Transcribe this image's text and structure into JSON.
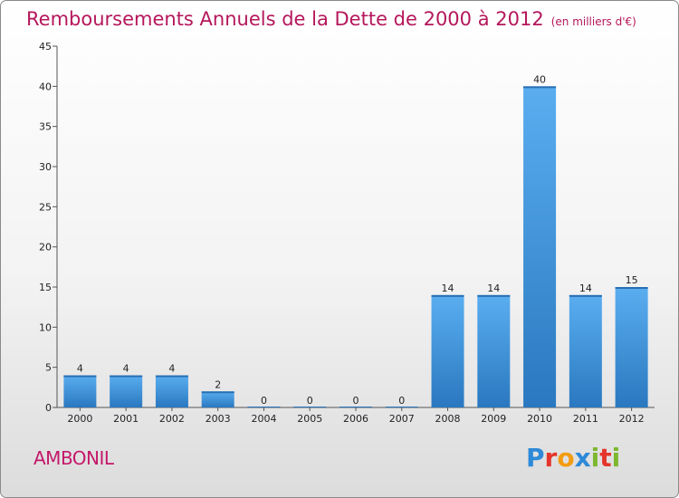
{
  "chart_data": {
    "type": "bar",
    "title": "Remboursements Annuels de la Dette de 2000 à 2012",
    "subtitle": "(en milliers d'€)",
    "xlabel": "",
    "ylabel": "",
    "categories": [
      "2000",
      "2001",
      "2002",
      "2003",
      "2004",
      "2005",
      "2006",
      "2007",
      "2008",
      "2009",
      "2010",
      "2011",
      "2012"
    ],
    "values": [
      4,
      4,
      4,
      2,
      0,
      0,
      0,
      0,
      14,
      14,
      40,
      14,
      15
    ],
    "data_labels": [
      "4",
      "4",
      "4",
      "2",
      "0",
      "0",
      "0",
      "0",
      "14",
      "14",
      "40",
      "14",
      "15"
    ],
    "ylim": [
      0,
      45
    ],
    "yticks": [
      0,
      5,
      10,
      15,
      20,
      25,
      30,
      35,
      40,
      45
    ],
    "grid": false,
    "bar_color": "#3a8fd6"
  },
  "footer": {
    "commune": "AMBONIL",
    "logo_letters": [
      {
        "ch": "P",
        "color": "#2e8ad8"
      },
      {
        "ch": "r",
        "color": "#e5352b"
      },
      {
        "ch": "o",
        "color": "#f39c12"
      },
      {
        "ch": "x",
        "color": "#2e8ad8"
      },
      {
        "ch": "i",
        "color": "#7cb82f"
      },
      {
        "ch": "t",
        "color": "#e5352b"
      },
      {
        "ch": "i",
        "color": "#7cb82f"
      }
    ]
  }
}
